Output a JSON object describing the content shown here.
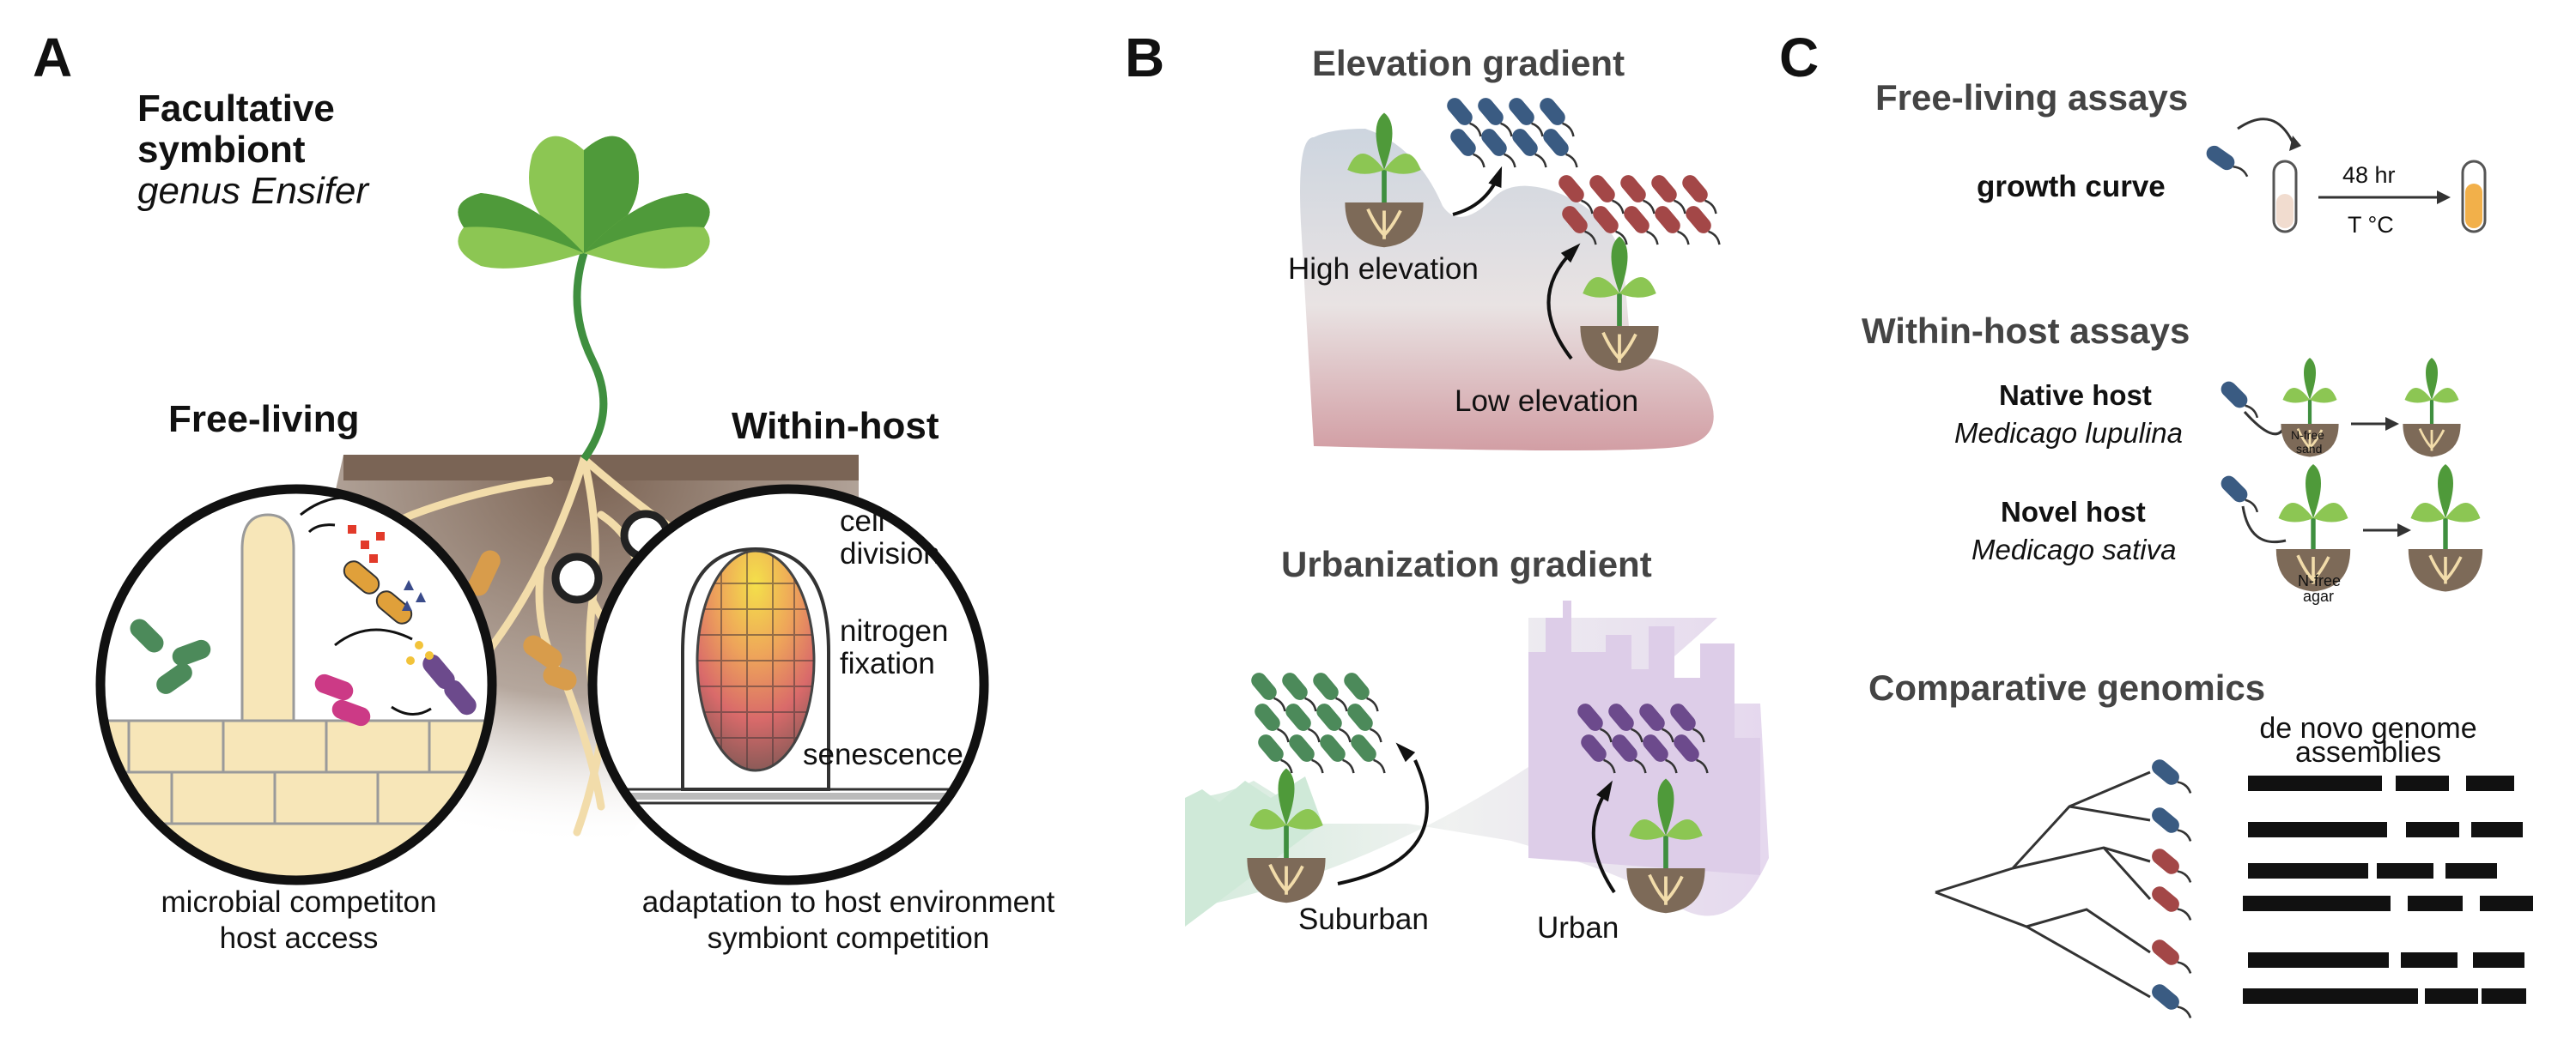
{
  "panel_a": {
    "letter": "A",
    "title_line1": "Facultative",
    "title_line2": "symbiont",
    "title_line3": "genus Ensifer",
    "free_living": "Free-living",
    "within_host": "Within-host",
    "cell_division_1": "cell",
    "cell_division_2": "division",
    "nitrogen_fixation_1": "nitrogen",
    "nitrogen_fixation_2": "fixation",
    "senescence": "senescence",
    "caption_left_1": "microbial competiton",
    "caption_left_2": "host access",
    "caption_right_1": "adaptation to host environment",
    "caption_right_2": "symbiont competition"
  },
  "panel_b": {
    "letter": "B",
    "elevation_title": "Elevation gradient",
    "high_elevation": "High elevation",
    "low_elevation": "Low elevation",
    "urbanization_title": "Urbanization gradient",
    "suburban": "Suburban",
    "urban": "Urban"
  },
  "panel_c": {
    "letter": "C",
    "free_living_title": "Free-living assays",
    "growth_curve": "growth curve",
    "time": "48 hr",
    "temp": "T °C",
    "within_host_title": "Within-host assays",
    "native_host": "Native host",
    "native_species": "Medicago lupulina",
    "novel_host": "Novel host",
    "novel_species": "Medicago sativa",
    "nfree_sand_1": "N-free",
    "nfree_sand_2": "sand",
    "nfree_agar_1": "N-free",
    "nfree_agar_2": "agar",
    "genomics_title": "Comparative genomics",
    "assemblies_1": "de novo genome",
    "assemblies_2": "assemblies"
  },
  "colors": {
    "leaf_dark": "#4f9a3a",
    "leaf_light": "#8cc653",
    "stem": "#3f8f3f",
    "root": "#f2dcaa",
    "soil": "#8a7566",
    "bacteria_blue": "#3a5b82",
    "bacteria_red": "#a34747",
    "bacteria_green": "#4c8a5a",
    "bacteria_purple": "#6c4a8c",
    "bacteria_orange": "#e0a03a",
    "bacteria_pink": "#cc3a86",
    "urban_purple": "#d9c8e6",
    "suburban_green": "#cfe8d6",
    "elev_top": "#cfd6df",
    "elev_bottom": "#d4a7ac",
    "culture": "#f2b04a"
  }
}
